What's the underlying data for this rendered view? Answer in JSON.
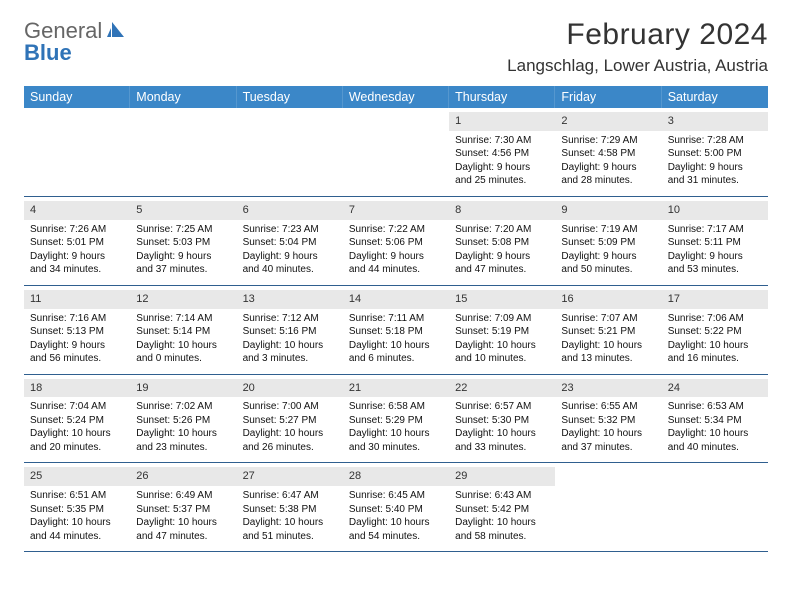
{
  "logo": {
    "line1": "General",
    "line2": "Blue"
  },
  "title": "February 2024",
  "location": "Langschlag, Lower Austria, Austria",
  "colors": {
    "header_bg": "#3b87c8",
    "header_text": "#ffffff",
    "daynum_bg": "#e8e8e8",
    "row_border": "#2f5f8f",
    "logo_gray": "#666666",
    "logo_blue": "#2f73b7"
  },
  "day_headers": [
    "Sunday",
    "Monday",
    "Tuesday",
    "Wednesday",
    "Thursday",
    "Friday",
    "Saturday"
  ],
  "weeks": [
    [
      {
        "num": "",
        "sunrise": "",
        "sunset": "",
        "daylight1": "",
        "daylight2": ""
      },
      {
        "num": "",
        "sunrise": "",
        "sunset": "",
        "daylight1": "",
        "daylight2": ""
      },
      {
        "num": "",
        "sunrise": "",
        "sunset": "",
        "daylight1": "",
        "daylight2": ""
      },
      {
        "num": "",
        "sunrise": "",
        "sunset": "",
        "daylight1": "",
        "daylight2": ""
      },
      {
        "num": "1",
        "sunrise": "Sunrise: 7:30 AM",
        "sunset": "Sunset: 4:56 PM",
        "daylight1": "Daylight: 9 hours",
        "daylight2": "and 25 minutes."
      },
      {
        "num": "2",
        "sunrise": "Sunrise: 7:29 AM",
        "sunset": "Sunset: 4:58 PM",
        "daylight1": "Daylight: 9 hours",
        "daylight2": "and 28 minutes."
      },
      {
        "num": "3",
        "sunrise": "Sunrise: 7:28 AM",
        "sunset": "Sunset: 5:00 PM",
        "daylight1": "Daylight: 9 hours",
        "daylight2": "and 31 minutes."
      }
    ],
    [
      {
        "num": "4",
        "sunrise": "Sunrise: 7:26 AM",
        "sunset": "Sunset: 5:01 PM",
        "daylight1": "Daylight: 9 hours",
        "daylight2": "and 34 minutes."
      },
      {
        "num": "5",
        "sunrise": "Sunrise: 7:25 AM",
        "sunset": "Sunset: 5:03 PM",
        "daylight1": "Daylight: 9 hours",
        "daylight2": "and 37 minutes."
      },
      {
        "num": "6",
        "sunrise": "Sunrise: 7:23 AM",
        "sunset": "Sunset: 5:04 PM",
        "daylight1": "Daylight: 9 hours",
        "daylight2": "and 40 minutes."
      },
      {
        "num": "7",
        "sunrise": "Sunrise: 7:22 AM",
        "sunset": "Sunset: 5:06 PM",
        "daylight1": "Daylight: 9 hours",
        "daylight2": "and 44 minutes."
      },
      {
        "num": "8",
        "sunrise": "Sunrise: 7:20 AM",
        "sunset": "Sunset: 5:08 PM",
        "daylight1": "Daylight: 9 hours",
        "daylight2": "and 47 minutes."
      },
      {
        "num": "9",
        "sunrise": "Sunrise: 7:19 AM",
        "sunset": "Sunset: 5:09 PM",
        "daylight1": "Daylight: 9 hours",
        "daylight2": "and 50 minutes."
      },
      {
        "num": "10",
        "sunrise": "Sunrise: 7:17 AM",
        "sunset": "Sunset: 5:11 PM",
        "daylight1": "Daylight: 9 hours",
        "daylight2": "and 53 minutes."
      }
    ],
    [
      {
        "num": "11",
        "sunrise": "Sunrise: 7:16 AM",
        "sunset": "Sunset: 5:13 PM",
        "daylight1": "Daylight: 9 hours",
        "daylight2": "and 56 minutes."
      },
      {
        "num": "12",
        "sunrise": "Sunrise: 7:14 AM",
        "sunset": "Sunset: 5:14 PM",
        "daylight1": "Daylight: 10 hours",
        "daylight2": "and 0 minutes."
      },
      {
        "num": "13",
        "sunrise": "Sunrise: 7:12 AM",
        "sunset": "Sunset: 5:16 PM",
        "daylight1": "Daylight: 10 hours",
        "daylight2": "and 3 minutes."
      },
      {
        "num": "14",
        "sunrise": "Sunrise: 7:11 AM",
        "sunset": "Sunset: 5:18 PM",
        "daylight1": "Daylight: 10 hours",
        "daylight2": "and 6 minutes."
      },
      {
        "num": "15",
        "sunrise": "Sunrise: 7:09 AM",
        "sunset": "Sunset: 5:19 PM",
        "daylight1": "Daylight: 10 hours",
        "daylight2": "and 10 minutes."
      },
      {
        "num": "16",
        "sunrise": "Sunrise: 7:07 AM",
        "sunset": "Sunset: 5:21 PM",
        "daylight1": "Daylight: 10 hours",
        "daylight2": "and 13 minutes."
      },
      {
        "num": "17",
        "sunrise": "Sunrise: 7:06 AM",
        "sunset": "Sunset: 5:22 PM",
        "daylight1": "Daylight: 10 hours",
        "daylight2": "and 16 minutes."
      }
    ],
    [
      {
        "num": "18",
        "sunrise": "Sunrise: 7:04 AM",
        "sunset": "Sunset: 5:24 PM",
        "daylight1": "Daylight: 10 hours",
        "daylight2": "and 20 minutes."
      },
      {
        "num": "19",
        "sunrise": "Sunrise: 7:02 AM",
        "sunset": "Sunset: 5:26 PM",
        "daylight1": "Daylight: 10 hours",
        "daylight2": "and 23 minutes."
      },
      {
        "num": "20",
        "sunrise": "Sunrise: 7:00 AM",
        "sunset": "Sunset: 5:27 PM",
        "daylight1": "Daylight: 10 hours",
        "daylight2": "and 26 minutes."
      },
      {
        "num": "21",
        "sunrise": "Sunrise: 6:58 AM",
        "sunset": "Sunset: 5:29 PM",
        "daylight1": "Daylight: 10 hours",
        "daylight2": "and 30 minutes."
      },
      {
        "num": "22",
        "sunrise": "Sunrise: 6:57 AM",
        "sunset": "Sunset: 5:30 PM",
        "daylight1": "Daylight: 10 hours",
        "daylight2": "and 33 minutes."
      },
      {
        "num": "23",
        "sunrise": "Sunrise: 6:55 AM",
        "sunset": "Sunset: 5:32 PM",
        "daylight1": "Daylight: 10 hours",
        "daylight2": "and 37 minutes."
      },
      {
        "num": "24",
        "sunrise": "Sunrise: 6:53 AM",
        "sunset": "Sunset: 5:34 PM",
        "daylight1": "Daylight: 10 hours",
        "daylight2": "and 40 minutes."
      }
    ],
    [
      {
        "num": "25",
        "sunrise": "Sunrise: 6:51 AM",
        "sunset": "Sunset: 5:35 PM",
        "daylight1": "Daylight: 10 hours",
        "daylight2": "and 44 minutes."
      },
      {
        "num": "26",
        "sunrise": "Sunrise: 6:49 AM",
        "sunset": "Sunset: 5:37 PM",
        "daylight1": "Daylight: 10 hours",
        "daylight2": "and 47 minutes."
      },
      {
        "num": "27",
        "sunrise": "Sunrise: 6:47 AM",
        "sunset": "Sunset: 5:38 PM",
        "daylight1": "Daylight: 10 hours",
        "daylight2": "and 51 minutes."
      },
      {
        "num": "28",
        "sunrise": "Sunrise: 6:45 AM",
        "sunset": "Sunset: 5:40 PM",
        "daylight1": "Daylight: 10 hours",
        "daylight2": "and 54 minutes."
      },
      {
        "num": "29",
        "sunrise": "Sunrise: 6:43 AM",
        "sunset": "Sunset: 5:42 PM",
        "daylight1": "Daylight: 10 hours",
        "daylight2": "and 58 minutes."
      },
      {
        "num": "",
        "sunrise": "",
        "sunset": "",
        "daylight1": "",
        "daylight2": ""
      },
      {
        "num": "",
        "sunrise": "",
        "sunset": "",
        "daylight1": "",
        "daylight2": ""
      }
    ]
  ]
}
